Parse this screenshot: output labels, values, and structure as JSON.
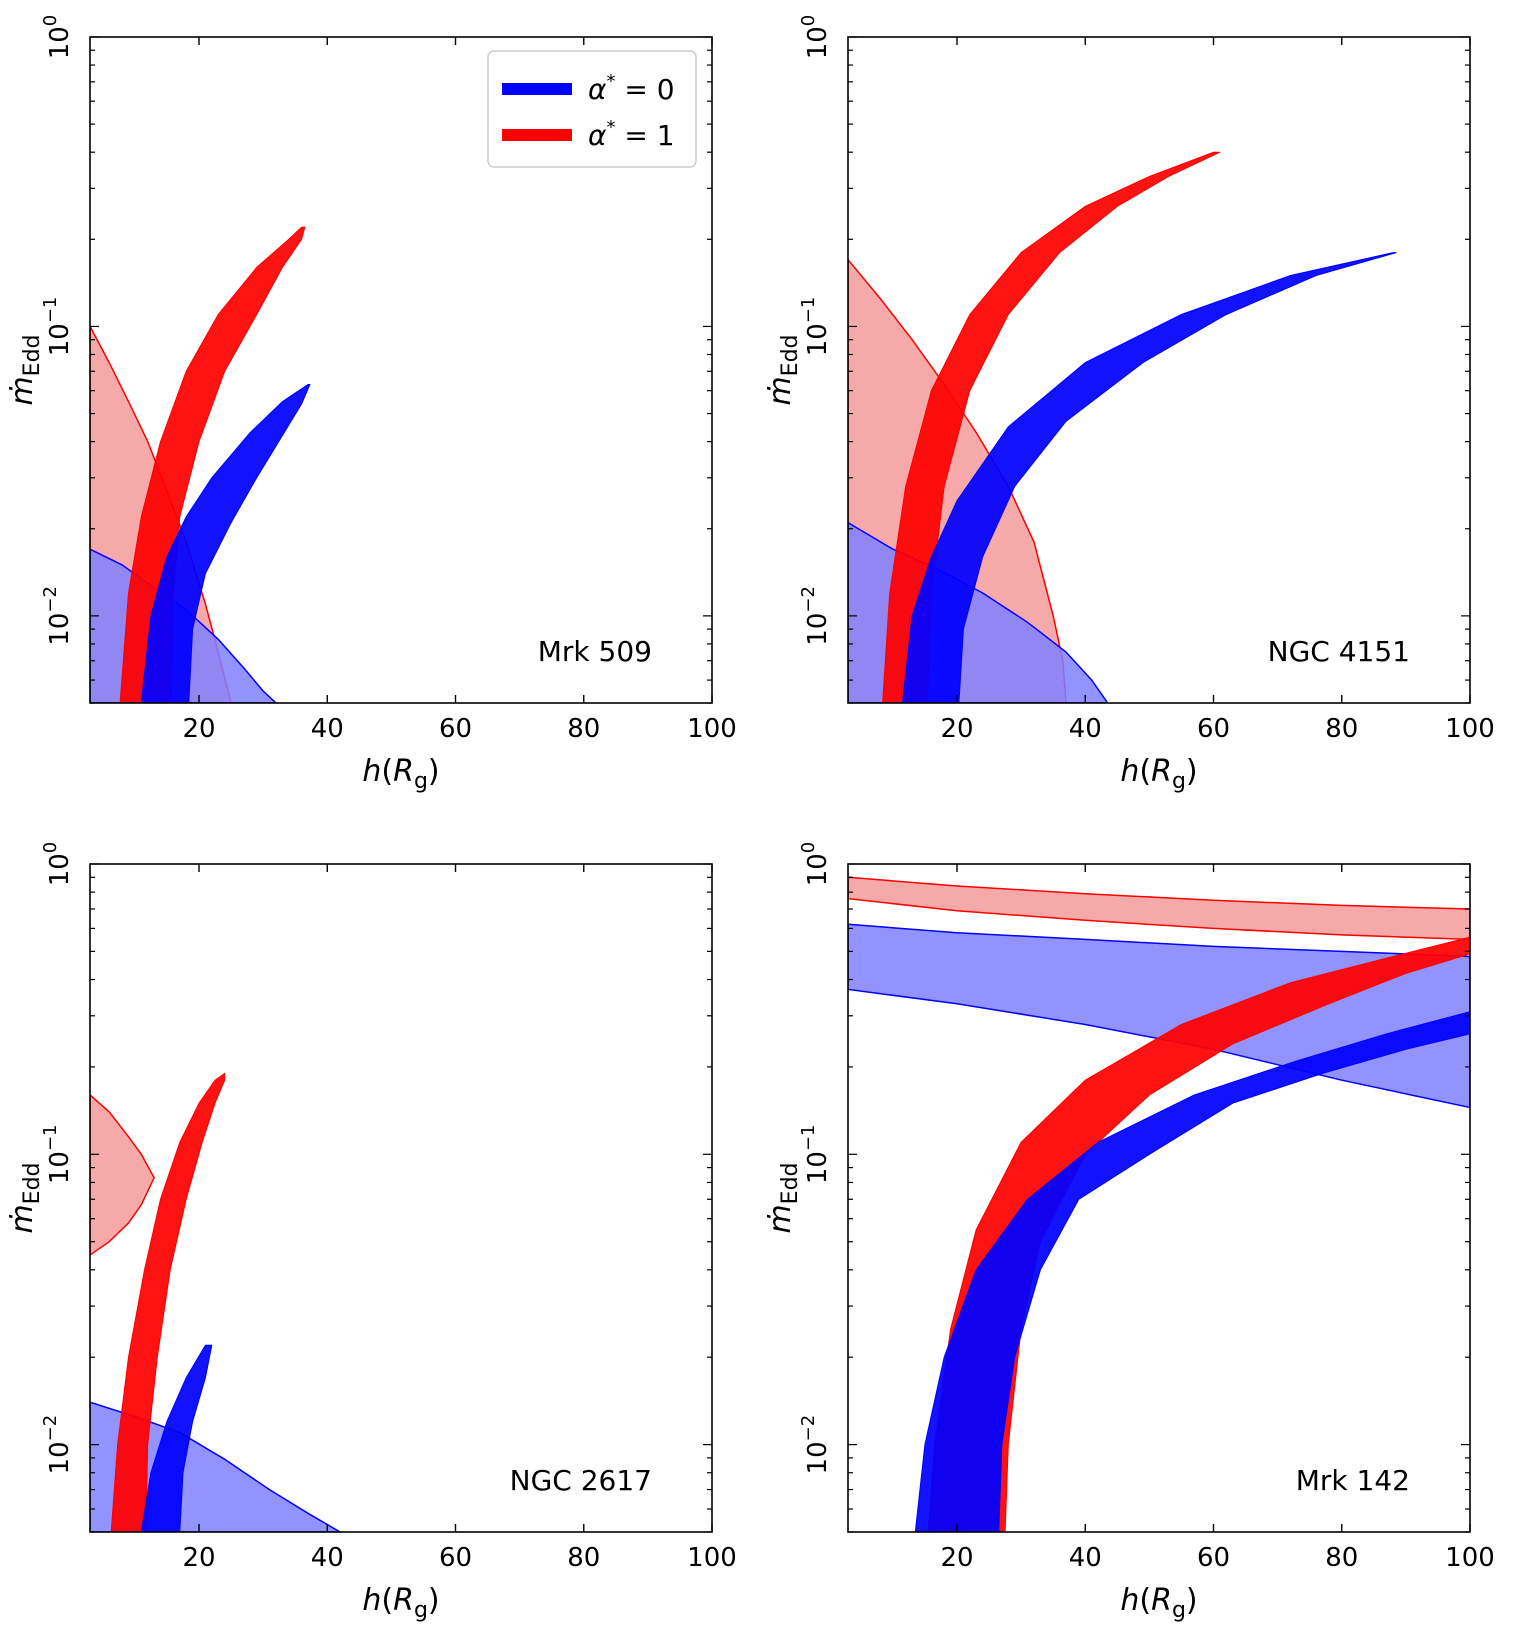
{
  "figure": {
    "legend": [
      {
        "label": "α* = 0",
        "label_main": "α",
        "label_sup": "*",
        "label_tail": " = 0",
        "color": "#0000ff"
      },
      {
        "label": "α* = 1",
        "label_main": "α",
        "label_sup": "*",
        "label_tail": " = 1",
        "color": "#ff0000"
      }
    ],
    "colors": {
      "blue": "#0000ff",
      "red": "#ff0000",
      "blue_shade": "#8080ff",
      "red_shade": "#f59a9a",
      "overlap_shade": "#800060"
    }
  },
  "chart_data": [
    {
      "type": "area",
      "object_label": "Mrk 509",
      "xlabel": "h(R_g)",
      "ylabel": "ṁ_Edd",
      "xlim": [
        3,
        100
      ],
      "ylim": [
        0.005,
        1
      ],
      "yscale": "log",
      "x_ticks": [
        20,
        40,
        60,
        80,
        100
      ],
      "y_ticks": [
        "10^0",
        "10^-1",
        "10^-2"
      ],
      "legend": "top-right",
      "series": [
        {
          "color": "red",
          "kind": "band",
          "left": [
            [
              7.7,
              0.005
            ],
            [
              9,
              0.012
            ],
            [
              11,
              0.022
            ],
            [
              14,
              0.04
            ],
            [
              18,
              0.07
            ],
            [
              23,
              0.11
            ],
            [
              29,
              0.16
            ],
            [
              34,
              0.2
            ],
            [
              36,
              0.22
            ]
          ],
          "right": [
            [
              15.7,
              0.005
            ],
            [
              16,
              0.012
            ],
            [
              17,
              0.022
            ],
            [
              20,
              0.04
            ],
            [
              24,
              0.07
            ],
            [
              29,
              0.11
            ],
            [
              33,
              0.16
            ],
            [
              36,
              0.2
            ],
            [
              36.5,
              0.22
            ]
          ]
        },
        {
          "color": "blue",
          "kind": "band",
          "left": [
            [
              11,
              0.005
            ],
            [
              12.5,
              0.01
            ],
            [
              15,
              0.016
            ],
            [
              18,
              0.022
            ],
            [
              22,
              0.03
            ],
            [
              28,
              0.043
            ],
            [
              33,
              0.055
            ],
            [
              37,
              0.063
            ]
          ],
          "right": [
            [
              18.4,
              0.005
            ],
            [
              19,
              0.009
            ],
            [
              21,
              0.014
            ],
            [
              25,
              0.021
            ],
            [
              29,
              0.03
            ],
            [
              33,
              0.042
            ],
            [
              36,
              0.054
            ],
            [
              37.3,
              0.063
            ]
          ]
        },
        {
          "color": "red",
          "kind": "shaded",
          "upper": [
            [
              3,
              0.1
            ],
            [
              6,
              0.075
            ],
            [
              9,
              0.055
            ],
            [
              12,
              0.04
            ],
            [
              15,
              0.027
            ],
            [
              18,
              0.018
            ],
            [
              21,
              0.011
            ],
            [
              23,
              0.0075
            ],
            [
              25,
              0.005
            ]
          ],
          "lower": [
            [
              3,
              0.005
            ],
            [
              25,
              0.005
            ]
          ]
        },
        {
          "color": "blue",
          "kind": "shaded",
          "upper": [
            [
              3,
              0.017
            ],
            [
              8,
              0.015
            ],
            [
              13,
              0.0125
            ],
            [
              18,
              0.0105
            ],
            [
              23,
              0.0083
            ],
            [
              27,
              0.0066
            ],
            [
              30,
              0.0055
            ],
            [
              32,
              0.005
            ]
          ],
          "lower": [
            [
              3,
              0.005
            ],
            [
              32,
              0.005
            ]
          ]
        }
      ]
    },
    {
      "type": "area",
      "object_label": "NGC 4151",
      "xlabel": "h(R_g)",
      "ylabel": "ṁ_Edd",
      "xlim": [
        3,
        100
      ],
      "ylim": [
        0.005,
        1
      ],
      "yscale": "log",
      "x_ticks": [
        20,
        40,
        60,
        80,
        100
      ],
      "y_ticks": [
        "10^0",
        "10^-1",
        "10^-2"
      ],
      "series": [
        {
          "color": "red",
          "kind": "band",
          "left": [
            [
              8.4,
              0.005
            ],
            [
              9.5,
              0.012
            ],
            [
              12,
              0.028
            ],
            [
              16,
              0.06
            ],
            [
              22,
              0.11
            ],
            [
              30,
              0.18
            ],
            [
              40,
              0.26
            ],
            [
              50,
              0.33
            ],
            [
              60,
              0.4
            ]
          ],
          "right": [
            [
              15.4,
              0.005
            ],
            [
              16,
              0.012
            ],
            [
              18,
              0.028
            ],
            [
              22,
              0.06
            ],
            [
              28,
              0.11
            ],
            [
              36,
              0.18
            ],
            [
              45,
              0.26
            ],
            [
              53,
              0.33
            ],
            [
              61,
              0.4
            ]
          ]
        },
        {
          "color": "blue",
          "kind": "band",
          "left": [
            [
              11.5,
              0.005
            ],
            [
              13,
              0.01
            ],
            [
              16,
              0.016
            ],
            [
              20,
              0.025
            ],
            [
              28,
              0.045
            ],
            [
              40,
              0.075
            ],
            [
              55,
              0.11
            ],
            [
              72,
              0.15
            ],
            [
              88,
              0.18
            ]
          ],
          "right": [
            [
              20.3,
              0.005
            ],
            [
              21,
              0.009
            ],
            [
              24,
              0.016
            ],
            [
              29,
              0.028
            ],
            [
              37,
              0.047
            ],
            [
              49,
              0.075
            ],
            [
              62,
              0.11
            ],
            [
              76,
              0.15
            ],
            [
              88.5,
              0.18
            ]
          ]
        },
        {
          "color": "red",
          "kind": "shaded",
          "upper": [
            [
              3,
              0.17
            ],
            [
              8,
              0.125
            ],
            [
              13,
              0.09
            ],
            [
              18,
              0.063
            ],
            [
              23,
              0.043
            ],
            [
              28,
              0.028
            ],
            [
              32,
              0.018
            ],
            [
              35,
              0.01
            ],
            [
              36.5,
              0.007
            ],
            [
              37,
              0.005
            ]
          ],
          "lower": [
            [
              3,
              0.005
            ],
            [
              37,
              0.005
            ]
          ]
        },
        {
          "color": "blue",
          "kind": "shaded",
          "upper": [
            [
              3,
              0.021
            ],
            [
              10,
              0.017
            ],
            [
              17,
              0.0145
            ],
            [
              24,
              0.012
            ],
            [
              31,
              0.0095
            ],
            [
              37,
              0.0075
            ],
            [
              41,
              0.006
            ],
            [
              43.5,
              0.005
            ]
          ],
          "lower": [
            [
              3,
              0.005
            ],
            [
              43.5,
              0.005
            ]
          ]
        }
      ]
    },
    {
      "type": "area",
      "object_label": "NGC 2617",
      "xlabel": "h(R_g)",
      "ylabel": "ṁ_Edd",
      "xlim": [
        3,
        100
      ],
      "ylim": [
        0.005,
        1
      ],
      "yscale": "log",
      "x_ticks": [
        20,
        40,
        60,
        80,
        100
      ],
      "y_ticks": [
        "10^0",
        "10^-1",
        "10^-2"
      ],
      "series": [
        {
          "color": "red",
          "kind": "band",
          "left": [
            [
              6.3,
              0.005
            ],
            [
              7.3,
              0.01
            ],
            [
              9,
              0.02
            ],
            [
              11.5,
              0.04
            ],
            [
              14,
              0.07
            ],
            [
              17,
              0.11
            ],
            [
              20,
              0.15
            ],
            [
              22.5,
              0.18
            ],
            [
              24,
              0.19
            ]
          ],
          "right": [
            [
              11.7,
              0.005
            ],
            [
              12,
              0.01
            ],
            [
              13.5,
              0.02
            ],
            [
              15.5,
              0.04
            ],
            [
              18,
              0.07
            ],
            [
              20.5,
              0.11
            ],
            [
              22.5,
              0.15
            ],
            [
              24,
              0.18
            ],
            [
              24,
              0.19
            ]
          ]
        },
        {
          "color": "blue",
          "kind": "band",
          "left": [
            [
              11,
              0.005
            ],
            [
              12.5,
              0.008
            ],
            [
              15,
              0.012
            ],
            [
              18,
              0.017
            ],
            [
              21,
              0.022
            ]
          ],
          "right": [
            [
              17,
              0.005
            ],
            [
              17.5,
              0.008
            ],
            [
              19,
              0.012
            ],
            [
              21,
              0.017
            ],
            [
              22,
              0.022
            ]
          ]
        },
        {
          "color": "red",
          "kind": "shaded",
          "upper": [
            [
              3,
              0.16
            ],
            [
              6,
              0.14
            ],
            [
              9,
              0.115
            ],
            [
              11,
              0.1
            ],
            [
              13,
              0.083
            ]
          ],
          "lower": [
            [
              3,
              0.045
            ],
            [
              6,
              0.05
            ],
            [
              9,
              0.058
            ],
            [
              11,
              0.067
            ],
            [
              13,
              0.083
            ]
          ]
        },
        {
          "color": "blue",
          "kind": "shaded",
          "upper": [
            [
              3,
              0.014
            ],
            [
              10,
              0.0125
            ],
            [
              17,
              0.011
            ],
            [
              24,
              0.0089
            ],
            [
              31,
              0.007
            ],
            [
              37,
              0.0058
            ],
            [
              42,
              0.005
            ]
          ],
          "lower": [
            [
              3,
              0.005
            ],
            [
              42,
              0.005
            ]
          ]
        }
      ]
    },
    {
      "type": "area",
      "object_label": "Mrk 142",
      "xlabel": "h(R_g)",
      "ylabel": "ṁ_Edd",
      "xlim": [
        3,
        100
      ],
      "ylim": [
        0.005,
        1
      ],
      "yscale": "log",
      "x_ticks": [
        20,
        40,
        60,
        80,
        100
      ],
      "y_ticks": [
        "10^0",
        "10^-1",
        "10^-2"
      ],
      "series": [
        {
          "color": "red",
          "kind": "band",
          "left": [
            [
              15.5,
              0.005
            ],
            [
              16.5,
              0.01
            ],
            [
              19,
              0.025
            ],
            [
              23,
              0.055
            ],
            [
              30,
              0.11
            ],
            [
              40,
              0.18
            ],
            [
              55,
              0.28
            ],
            [
              72,
              0.39
            ],
            [
              88,
              0.48
            ],
            [
              100,
              0.56
            ]
          ],
          "right": [
            [
              27.5,
              0.005
            ],
            [
              28,
              0.01
            ],
            [
              30,
              0.025
            ],
            [
              33,
              0.05
            ],
            [
              40,
              0.1
            ],
            [
              50,
              0.16
            ],
            [
              63,
              0.24
            ],
            [
              78,
              0.33
            ],
            [
              90,
              0.42
            ],
            [
              100,
              0.49
            ]
          ]
        },
        {
          "color": "blue",
          "kind": "band",
          "left": [
            [
              13.5,
              0.005
            ],
            [
              15,
              0.01
            ],
            [
              18,
              0.02
            ],
            [
              23,
              0.04
            ],
            [
              31,
              0.07
            ],
            [
              42,
              0.11
            ],
            [
              57,
              0.16
            ],
            [
              73,
              0.21
            ],
            [
              87,
              0.26
            ],
            [
              100,
              0.31
            ]
          ],
          "right": [
            [
              26.5,
              0.005
            ],
            [
              27,
              0.01
            ],
            [
              29,
              0.02
            ],
            [
              33,
              0.04
            ],
            [
              39,
              0.07
            ],
            [
              50,
              0.1
            ],
            [
              63,
              0.15
            ],
            [
              77,
              0.19
            ],
            [
              90,
              0.23
            ],
            [
              100,
              0.26
            ]
          ]
        },
        {
          "color": "red",
          "kind": "shaded",
          "upper": [
            [
              3,
              0.9
            ],
            [
              20,
              0.84
            ],
            [
              40,
              0.79
            ],
            [
              60,
              0.75
            ],
            [
              80,
              0.72
            ],
            [
              100,
              0.7
            ]
          ],
          "lower": [
            [
              3,
              0.76
            ],
            [
              20,
              0.69
            ],
            [
              40,
              0.64
            ],
            [
              60,
              0.6
            ],
            [
              80,
              0.57
            ],
            [
              100,
              0.55
            ]
          ]
        },
        {
          "color": "blue",
          "kind": "shaded",
          "upper": [
            [
              3,
              0.62
            ],
            [
              20,
              0.58
            ],
            [
              40,
              0.55
            ],
            [
              60,
              0.52
            ],
            [
              80,
              0.5
            ],
            [
              100,
              0.48
            ]
          ],
          "lower": [
            [
              3,
              0.37
            ],
            [
              20,
              0.33
            ],
            [
              40,
              0.28
            ],
            [
              60,
              0.23
            ],
            [
              80,
              0.18
            ],
            [
              100,
              0.145
            ]
          ]
        }
      ]
    }
  ]
}
